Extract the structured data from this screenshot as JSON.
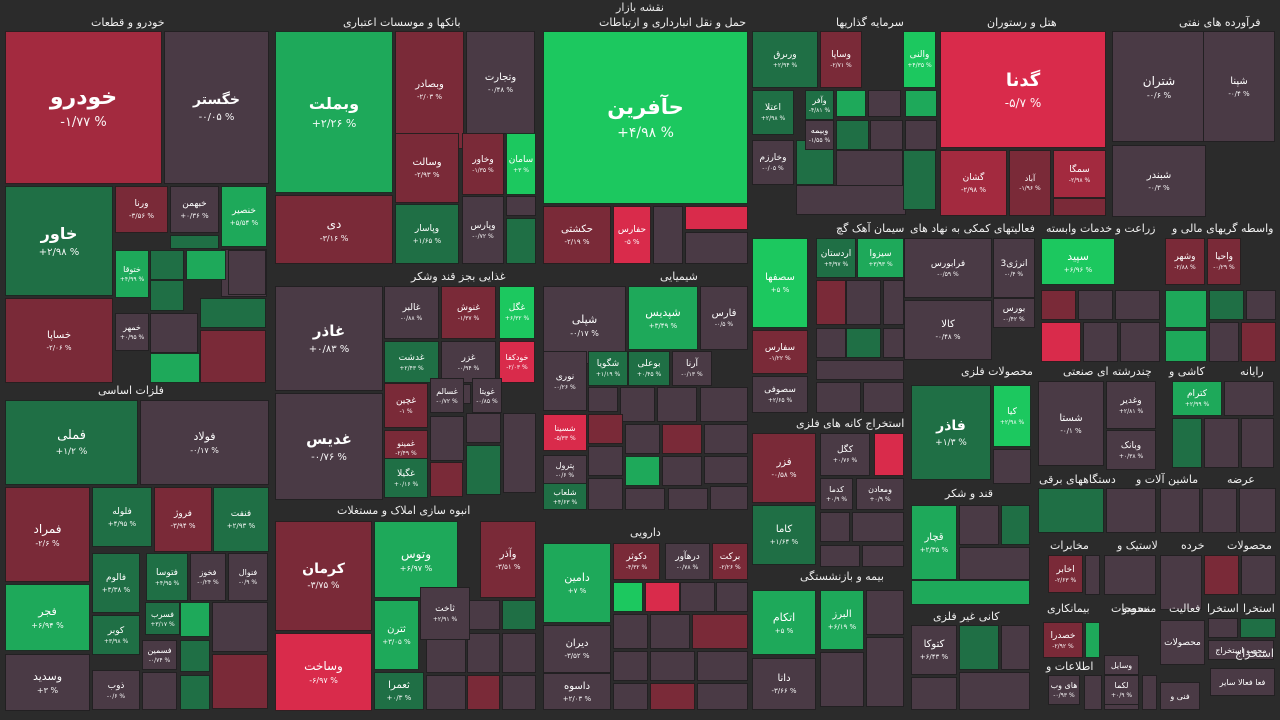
{
  "title": "نقشه بازار",
  "colors": {
    "strong_red": "#d92b4b",
    "red": "#a32a3f",
    "dark_red": "#7a2a38",
    "neutral": "#4a3a45",
    "dark_green": "#1f6f45",
    "green": "#1ea95a",
    "strong_green": "#1cc85f"
  },
  "sectors": [
    {
      "label": "خودرو و قطعات"
    },
    {
      "label": "بانکها و موسسات اعتباری"
    },
    {
      "label": "حمل و نقل انبارداری و ارتباطات"
    },
    {
      "label": "سرمایه گذاریها"
    },
    {
      "label": "هتل و رستوران"
    },
    {
      "label": "فرآورده های نفتی"
    },
    {
      "label": "غذایی بجز قند وشکر"
    },
    {
      "label": "شیمیایی"
    },
    {
      "label": "سیمان آهک گچ"
    },
    {
      "label": "فعالیتهای کمکی به نهاد های"
    },
    {
      "label": "زراعت و خدمات وابسته"
    },
    {
      "label": "واسطه گریهای مالی و"
    },
    {
      "label": "فلزات اساسی"
    },
    {
      "label": "محصولات فلزی"
    },
    {
      "label": "چندرشته ای صنعتی"
    },
    {
      "label": "کاشی و"
    },
    {
      "label": "رایانه"
    },
    {
      "label": "استخراج کانه های فلزی"
    },
    {
      "label": "دستگاههای برقی"
    },
    {
      "label": "ماشین آلات و"
    },
    {
      "label": "عرضه"
    },
    {
      "label": "قند و شکر"
    },
    {
      "label": "انبوه سازی املاک و مستغلات"
    },
    {
      "label": "دارویی"
    },
    {
      "label": "بیمه و بازنشستگی"
    },
    {
      "label": "مخابرات"
    },
    {
      "label": "لاستیک و"
    },
    {
      "label": "خرده"
    },
    {
      "label": "محصولات"
    },
    {
      "label": "کانی غیر فلزی"
    },
    {
      "label": "بیمانکاری"
    },
    {
      "label": "منسوجات"
    },
    {
      "label": "فعالیت"
    },
    {
      "label": "استخرا"
    },
    {
      "label": "استخرا"
    },
    {
      "label": "اطلاعات و"
    },
    {
      "label": "محصو"
    },
    {
      "label": "استخراج"
    }
  ],
  "tiles": [
    {
      "name": "خودرو",
      "pct": "% ۱/۷۷-"
    },
    {
      "name": "خگستر",
      "pct": "% ۰/۰۵-"
    },
    {
      "name": "خاور",
      "pct": "% ۲/۹۸+"
    },
    {
      "name": "ورنا",
      "pct": "% ۳/۵۶-"
    },
    {
      "name": "خبهمن",
      "pct": "% ۰/۳۶+"
    },
    {
      "name": "خنصیر",
      "pct": "% ۵/۵۴+"
    },
    {
      "name": "ختوقا",
      "pct": "% ۴/۹۹+"
    },
    {
      "name": "خمهر",
      "pct": "% ۰/۹۵+"
    },
    {
      "name": "خساپا",
      "pct": "% ۲/۰۶-"
    },
    {
      "name": "وبملت",
      "pct": "% ۲/۲۶+"
    },
    {
      "name": "وبصادر",
      "pct": "% ۲/۰۳-"
    },
    {
      "name": "وتجارت",
      "pct": "% ۰/۴۸-"
    },
    {
      "name": "وسالت",
      "pct": "% ۲/۹۳-"
    },
    {
      "name": "وخاور",
      "pct": "% ۱/۳۵-"
    },
    {
      "name": "سامان",
      "pct": "% ۳+"
    },
    {
      "name": "دی",
      "pct": "% ۳/۱۶-"
    },
    {
      "name": "وپاسار",
      "pct": "% ۱/۶۵+"
    },
    {
      "name": "وپارس",
      "pct": "% ۰/۷۲-"
    },
    {
      "name": "حآفرین",
      "pct": "% ۴/۹۸+"
    },
    {
      "name": "حکشتی",
      "pct": "% ۲/۱۹-"
    },
    {
      "name": "حفارس",
      "pct": "% ۵-"
    },
    {
      "name": "ورىرق",
      "pct": "% ۲/۹۴+"
    },
    {
      "name": "وساپا",
      "pct": "% ۲/۷۱-"
    },
    {
      "name": "والنی",
      "pct": "% ۴/۳۵+"
    },
    {
      "name": "اعتلا",
      "pct": "% ۲/۹۸+"
    },
    {
      "name": "وآفر",
      "pct": "% ۴/۸۱-"
    },
    {
      "name": "وبیمه",
      "pct": "% ۱/۵۵-"
    },
    {
      "name": "وخارزم",
      "pct": "% ۰/۰۵-"
    },
    {
      "name": "گدنا",
      "pct": "% ۵/۷-"
    },
    {
      "name": "گشان",
      "pct": "% ۲/۹۸-"
    },
    {
      "name": "آباد",
      "pct": "% ۱/۹۶-"
    },
    {
      "name": "سمگا",
      "pct": "% ۲/۹۸-"
    },
    {
      "name": "شتران",
      "pct": "% ۰/۶-"
    },
    {
      "name": "شپنا",
      "pct": "% ۰/۴-"
    },
    {
      "name": "شبندر",
      "pct": "% ۰/۳-"
    },
    {
      "name": "غاذر",
      "pct": "% ۰/۸۳+"
    },
    {
      "name": "غالبر",
      "pct": "% ۰/۸۸-"
    },
    {
      "name": "غنوش",
      "pct": "% ۱/۳۷-"
    },
    {
      "name": "غگل",
      "pct": "% ۶/۳۲+"
    },
    {
      "name": "غدشت",
      "pct": "% ۲/۴۳+"
    },
    {
      "name": "غزر",
      "pct": "% ۰/۹۴-"
    },
    {
      "name": "خودکفا",
      "pct": "% ۲/۰۳-"
    },
    {
      "name": "غدیس",
      "pct": "% ۰/۷۶-"
    },
    {
      "name": "غچین",
      "pct": "% ۱-"
    },
    {
      "name": "غسالم",
      "pct": "% ۰/۷۲-"
    },
    {
      "name": "غویتا",
      "pct": "% ۰/۸۵-"
    },
    {
      "name": "غمینو",
      "pct": "% ۲/۴۹-"
    },
    {
      "name": "غگیلا",
      "pct": "% ۰/۱۶+"
    },
    {
      "name": "شپلی",
      "pct": "% ۰/۱۷-"
    },
    {
      "name": "شپدیس",
      "pct": "% ۳/۴۹+"
    },
    {
      "name": "فارس",
      "pct": "% ۰/۵-"
    },
    {
      "name": "شگویا",
      "pct": "% ۱/۱۹+"
    },
    {
      "name": "بوعلی",
      "pct": "% ۰/۴۵+"
    },
    {
      "name": "آرنا",
      "pct": "% ۰/۱۳-"
    },
    {
      "name": "نوری",
      "pct": "% ۰/۲۶-"
    },
    {
      "name": "شسینا",
      "pct": "% ۵/۳۳-"
    },
    {
      "name": "پترول",
      "pct": "% ۰/۶-"
    },
    {
      "name": "شلعاب",
      "pct": "% ۴/۶۳+"
    },
    {
      "name": "سیزوا",
      "pct": "% ۳/۹۳+"
    },
    {
      "name": "اردستان",
      "pct": "% ۴/۹۷+"
    },
    {
      "name": "سصفها",
      "pct": "% ۵+"
    },
    {
      "name": "سفارس",
      "pct": "% ۱/۲۲-"
    },
    {
      "name": "سصوفی",
      "pct": "% ۲/۶۵+"
    },
    {
      "name": "فرابورس",
      "pct": "% ۰/۵۹-"
    },
    {
      "name": "انرژی3",
      "pct": "% ۰/۴-"
    },
    {
      "name": "بورس",
      "pct": "% ۰/۴۲-"
    },
    {
      "name": "کالا",
      "pct": "% ۰/۴۸-"
    },
    {
      "name": "سپید",
      "pct": "% ۶/۹۶+"
    },
    {
      "name": "وشهر",
      "pct": "% ۲/۸۸-"
    },
    {
      "name": "واحیا",
      "pct": "% ۰/۲۹-"
    },
    {
      "name": "فملی",
      "pct": "% ۱/۲+"
    },
    {
      "name": "فولاد",
      "pct": "% ۰/۱۷-"
    },
    {
      "name": "فمراد",
      "pct": "% ۲/۶-"
    },
    {
      "name": "فلوله",
      "pct": "% ۴/۹۵+"
    },
    {
      "name": "فروژ",
      "pct": "% ۳/۹۴-"
    },
    {
      "name": "فنفت",
      "pct": "% ۲/۹۳+"
    },
    {
      "name": "فتوسا",
      "pct": "% ۴/۹۵+"
    },
    {
      "name": "فخوز",
      "pct": "% ۰/۲۴-"
    },
    {
      "name": "فنوال",
      "pct": "% ۰/۹-"
    },
    {
      "name": "فالوم",
      "pct": "% ۳/۳۸+"
    },
    {
      "name": "فجر",
      "pct": "% ۶/۹۴+"
    },
    {
      "name": "فسرب",
      "pct": "% ۳/۱۷+"
    },
    {
      "name": "کوبر",
      "pct": "% ۳/۹۸+"
    },
    {
      "name": "فسمین",
      "pct": "% ۰/۷۴-"
    },
    {
      "name": "وسدید",
      "pct": "% ۳+"
    },
    {
      "name": "ذوب",
      "pct": "% ۰/۶-"
    },
    {
      "name": "فاذر",
      "pct": "% ۱/۳+"
    },
    {
      "name": "کیا",
      "pct": "% ۲/۹۸+"
    },
    {
      "name": "شستا",
      "pct": "% ۰/۱-"
    },
    {
      "name": "وغدیر",
      "pct": "% ۲/۸۱+"
    },
    {
      "name": "وبانک",
      "pct": "% ۰/۳۸+"
    },
    {
      "name": "کترام",
      "pct": "% ۲/۹۹+"
    },
    {
      "name": "کگل",
      "pct": "% ۰/۷۶+"
    },
    {
      "name": "فزر",
      "pct": "% ۰/۵۸-"
    },
    {
      "name": "کدما",
      "pct": "% ۰/۹+"
    },
    {
      "name": "ومعادن",
      "pct": "% ۰/۹+"
    },
    {
      "name": "کاما",
      "pct": "% ۱/۶۴+"
    },
    {
      "name": "قچار",
      "pct": "% ۲/۳۵+"
    },
    {
      "name": "کرمان",
      "pct": "% ۳/۷۵-"
    },
    {
      "name": "وتوس",
      "pct": "% ۶/۹۷+"
    },
    {
      "name": "وآذر",
      "pct": "% ۳/۵۱-"
    },
    {
      "name": "ثاخت",
      "pct": "% ۲/۹۱+"
    },
    {
      "name": "ثترن",
      "pct": "% ۳/۰۵+"
    },
    {
      "name": "ثعمرا",
      "pct": "% ۰/۳+"
    },
    {
      "name": "وساخت",
      "pct": "% ۶/۹۷-"
    },
    {
      "name": "دامین",
      "pct": "% ۷+"
    },
    {
      "name": "دکوثر",
      "pct": "% ۴/۳۲-"
    },
    {
      "name": "درهآور",
      "pct": "% ۰/۷۸-"
    },
    {
      "name": "برکت",
      "pct": "% ۲/۲۶-"
    },
    {
      "name": "دیران",
      "pct": "% ۳/۵۲-"
    },
    {
      "name": "داسوه",
      "pct": "% ۲/۰۳+"
    },
    {
      "name": "البرز",
      "pct": "% ۶/۱۹+"
    },
    {
      "name": "اتکام",
      "pct": "% ۵+"
    },
    {
      "name": "دانا",
      "pct": "% ۳/۶۶-"
    },
    {
      "name": "کتوکا",
      "pct": "% ۶/۴۳+"
    },
    {
      "name": "اخابر",
      "pct": "% ۲/۶۳-"
    },
    {
      "name": "خصدرا",
      "pct": "% ۲/۹۲-"
    },
    {
      "name": "های وب",
      "pct": "% ۰/۹۳-"
    },
    {
      "name": "لکما",
      "pct": "% ۰/۹+"
    },
    {
      "name": "وسایل",
      "pct": ""
    },
    {
      "name": "محصولات",
      "pct": ""
    },
    {
      "name": "فنی و",
      "pct": ""
    },
    {
      "name": "محصو استخراج",
      "pct": ""
    },
    {
      "name": "فعا فعالا سایر",
      "pct": ""
    }
  ]
}
